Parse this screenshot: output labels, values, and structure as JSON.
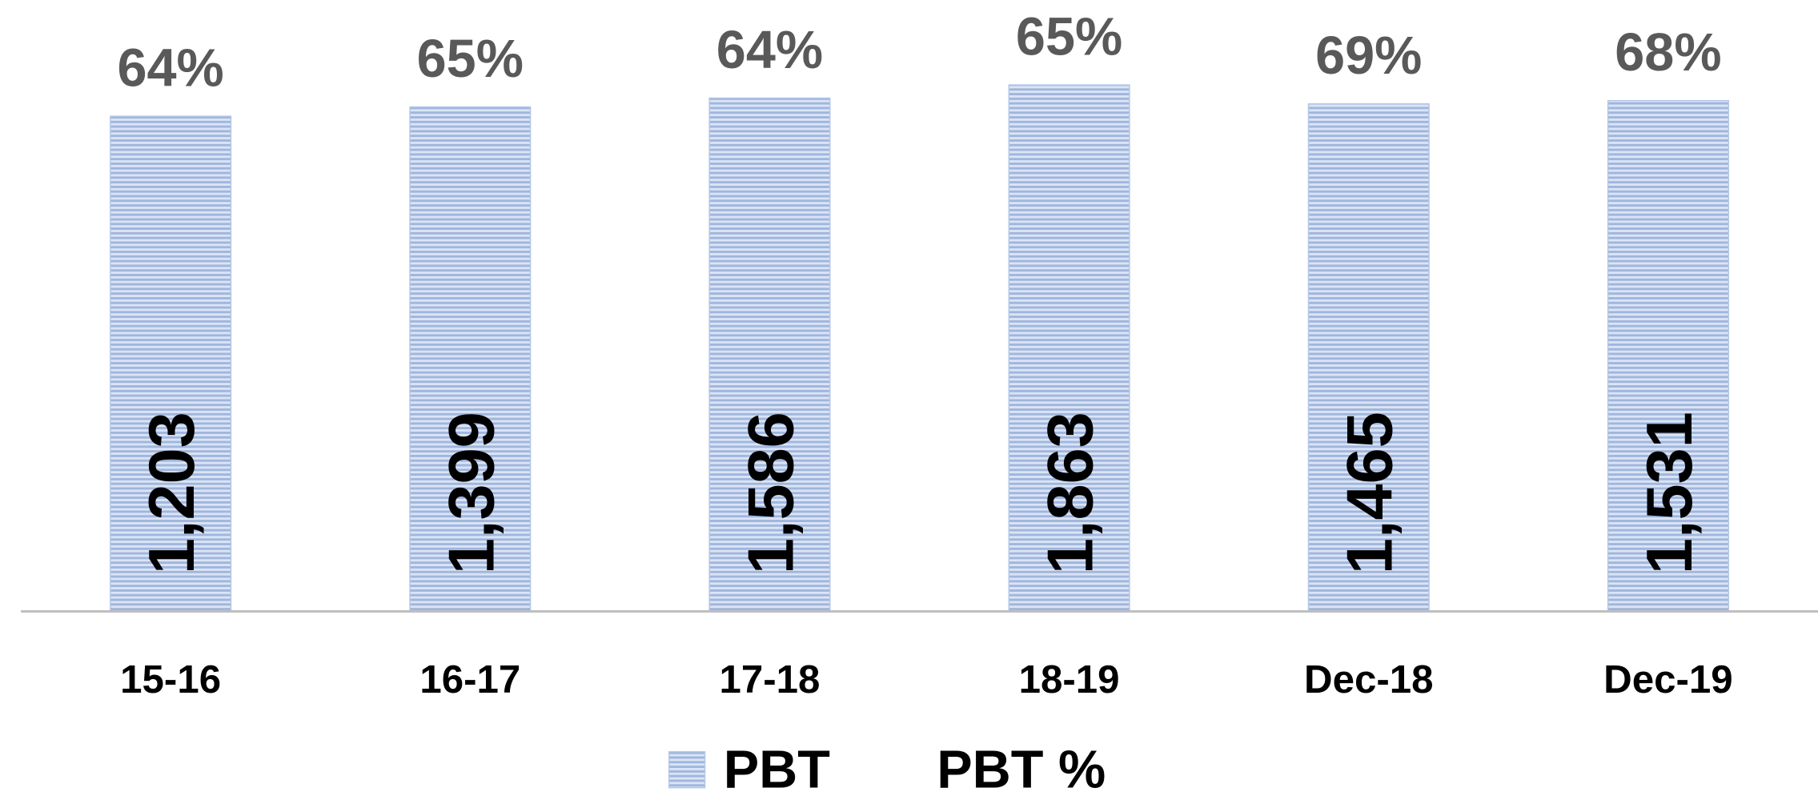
{
  "chart_data": {
    "type": "bar",
    "categories": [
      "15-16",
      "16-17",
      "17-18",
      "18-19",
      "Dec-18",
      "Dec-19"
    ],
    "series": [
      {
        "name": "PBT",
        "color": "#b4c7e7",
        "values": [
          1203,
          1399,
          1586,
          1863,
          1465,
          1531
        ],
        "value_labels": [
          "1,203",
          "1,399",
          "1,586",
          "1,863",
          "1,465",
          "1,531"
        ]
      },
      {
        "name": "PBT %",
        "axis": "y2",
        "values": [
          64,
          65,
          64,
          65,
          69,
          68
        ],
        "value_labels": [
          "64%",
          "65%",
          "64%",
          "65%",
          "69%",
          "68%"
        ]
      }
    ],
    "ylim": [
      -9240,
      3650
    ]
  }
}
